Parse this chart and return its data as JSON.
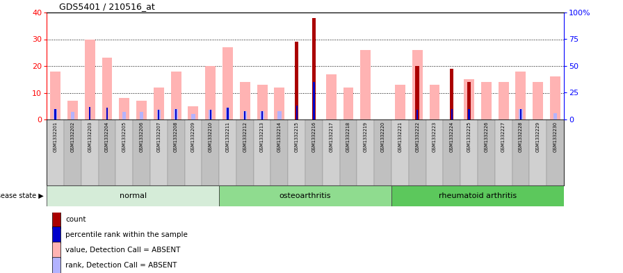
{
  "title": "GDS5401 / 210516_at",
  "samples": [
    "GSM1332201",
    "GSM1332202",
    "GSM1332203",
    "GSM1332204",
    "GSM1332205",
    "GSM1332206",
    "GSM1332207",
    "GSM1332208",
    "GSM1332209",
    "GSM1332210",
    "GSM1332211",
    "GSM1332212",
    "GSM1332213",
    "GSM1332214",
    "GSM1332215",
    "GSM1332216",
    "GSM1332217",
    "GSM1332218",
    "GSM1332219",
    "GSM1332220",
    "GSM1332221",
    "GSM1332222",
    "GSM1332223",
    "GSM1332224",
    "GSM1332225",
    "GSM1332226",
    "GSM1332227",
    "GSM1332228",
    "GSM1332229",
    "GSM1332230"
  ],
  "count_values": [
    0,
    0,
    0,
    0,
    0,
    0,
    0,
    0,
    0,
    0,
    0,
    0,
    0,
    0,
    29,
    38,
    0,
    0,
    0,
    0,
    0,
    20,
    0,
    19,
    14,
    0,
    0,
    0,
    0,
    0
  ],
  "percentile_rank": [
    10,
    0,
    12,
    11,
    0,
    0,
    9,
    10,
    0,
    9,
    11,
    8,
    8,
    0,
    13,
    35,
    0,
    0,
    0,
    0,
    0,
    9,
    0,
    10,
    10,
    0,
    0,
    10,
    0,
    0
  ],
  "absent_value": [
    18,
    7,
    30,
    23,
    8,
    7,
    12,
    18,
    5,
    20,
    27,
    14,
    13,
    12,
    0,
    0,
    17,
    12,
    26,
    0,
    13,
    26,
    13,
    0,
    15,
    14,
    14,
    18,
    14,
    16
  ],
  "absent_rank": [
    10,
    7,
    0,
    0,
    7,
    7,
    9,
    10,
    5,
    9,
    11,
    8,
    8,
    8,
    0,
    0,
    0,
    0,
    0,
    0,
    0,
    9,
    0,
    0,
    0,
    0,
    0,
    10,
    0,
    6
  ],
  "groups": [
    {
      "name": "normal",
      "start": 0,
      "end": 9,
      "color": "#d5ecd8"
    },
    {
      "name": "osteoarthritis",
      "start": 10,
      "end": 19,
      "color": "#8fdc8f"
    },
    {
      "name": "rheumatoid arthritis",
      "start": 20,
      "end": 29,
      "color": "#5cc85c"
    }
  ],
  "left_ylim": [
    0,
    40
  ],
  "right_ylim": [
    0,
    100
  ],
  "left_yticks": [
    0,
    10,
    20,
    30,
    40
  ],
  "right_yticks": [
    0,
    25,
    50,
    75,
    100
  ],
  "color_count": "#aa0000",
  "color_percentile": "#0000cc",
  "color_absent_value": "#ffb3b3",
  "color_absent_rank": "#b3b3ff",
  "tick_col_even": "#d0d0d0",
  "tick_col_odd": "#c0c0c0",
  "figsize": [
    8.96,
    3.93
  ],
  "dpi": 100
}
